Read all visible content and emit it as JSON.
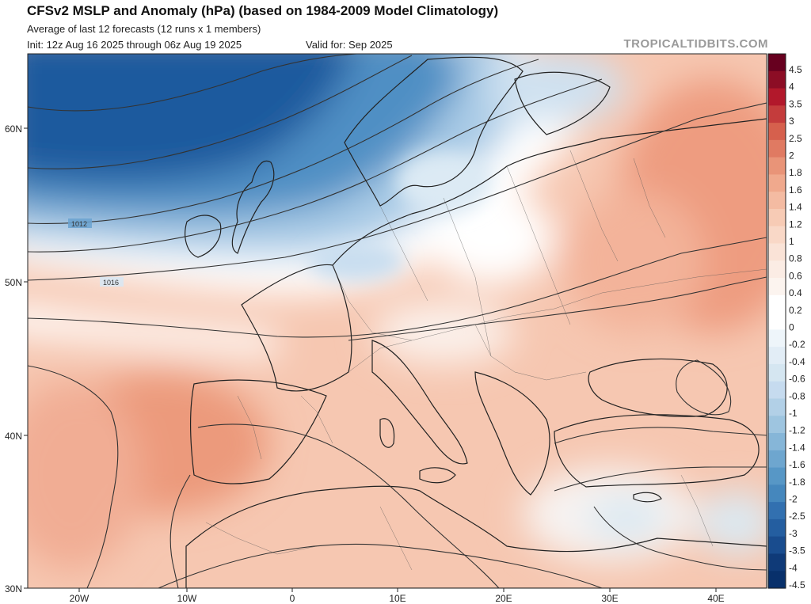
{
  "header": {
    "title": "CFSv2 MSLP and Anomaly (hPa) (based on 1984-2009 Model Climatology)",
    "subtitle": "Average of last 12 forecasts (12 runs x 1 members)",
    "init": "Init: 12z Aug 16 2025 through 06z Aug 19 2025",
    "valid": "Valid for: Sep 2025",
    "brand": "TROPICALTIDBITS.COM"
  },
  "map": {
    "lat_labels": [
      "60N",
      "50N",
      "40N",
      "30N"
    ],
    "lon_labels": [
      "20W",
      "10W",
      "0",
      "10E",
      "20E",
      "30E",
      "40E"
    ],
    "isobar_labels": [
      "1012",
      "1016"
    ],
    "colors": {
      "ocean_low": "#1f5a9e",
      "neutral": "#ffffff",
      "positive": "#e9997e",
      "border": "#222222"
    }
  },
  "colorbar": {
    "labels": [
      "4.5",
      "4",
      "3.5",
      "3",
      "2.5",
      "2",
      "1.8",
      "1.6",
      "1.4",
      "1.2",
      "1",
      "0.8",
      "0.6",
      "0.4",
      "0.2",
      "0",
      "-0.2",
      "-0.4",
      "-0.6",
      "-0.8",
      "-1",
      "-1.2",
      "-1.4",
      "-1.6",
      "-1.8",
      "-2",
      "-2.5",
      "-3",
      "-3.5",
      "-4",
      "-4.5"
    ],
    "colors": [
      "#67001f",
      "#8c0d25",
      "#b2182b",
      "#c43c3c",
      "#d6604d",
      "#e07a62",
      "#e99478",
      "#f0a98d",
      "#f4bba2",
      "#f7cbb5",
      "#f9d8c7",
      "#fae3d7",
      "#fbece4",
      "#fcf4ef",
      "#ffffff",
      "#ffffff",
      "#eef5fa",
      "#e2edf6",
      "#d5e6f1",
      "#c6dbef",
      "#b2d0e7",
      "#9ec5e0",
      "#86b6d8",
      "#6ea6cf",
      "#5797c6",
      "#4587bd",
      "#3270b0",
      "#245ea0",
      "#194c8e",
      "#0f3a78",
      "#08306b"
    ]
  }
}
